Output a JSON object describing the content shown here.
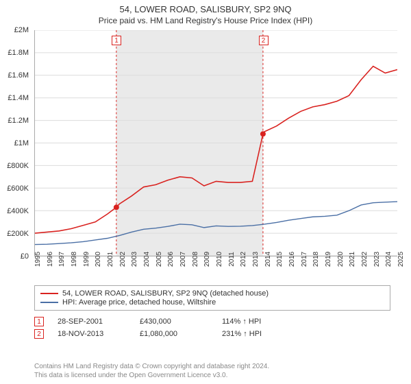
{
  "title": "54, LOWER ROAD, SALISBURY, SP2 9NQ",
  "subtitle": "Price paid vs. HM Land Registry's House Price Index (HPI)",
  "chart": {
    "type": "line",
    "background_color": "#ffffff",
    "shaded_band_color": "#eaeaea",
    "shaded_band_x": [
      2001.74,
      2013.88
    ],
    "grid_color": "#dcdcdc",
    "axis_color": "#aaaaaa",
    "tick_fontsize": 11,
    "xlim": [
      1995,
      2025
    ],
    "ylim": [
      0,
      2000000
    ],
    "y_ticks": [
      {
        "v": 0,
        "label": "£0"
      },
      {
        "v": 200000,
        "label": "£200K"
      },
      {
        "v": 400000,
        "label": "£400K"
      },
      {
        "v": 600000,
        "label": "£600K"
      },
      {
        "v": 800000,
        "label": "£800K"
      },
      {
        "v": 1000000,
        "label": "£1M"
      },
      {
        "v": 1200000,
        "label": "£1.2M"
      },
      {
        "v": 1400000,
        "label": "£1.4M"
      },
      {
        "v": 1600000,
        "label": "£1.6M"
      },
      {
        "v": 1800000,
        "label": "£1.8M"
      },
      {
        "v": 2000000,
        "label": "£2M"
      }
    ],
    "x_ticks": [
      1995,
      1996,
      1997,
      1998,
      1999,
      2000,
      2001,
      2002,
      2003,
      2004,
      2005,
      2006,
      2007,
      2008,
      2009,
      2010,
      2011,
      2012,
      2013,
      2014,
      2015,
      2016,
      2017,
      2018,
      2019,
      2020,
      2021,
      2022,
      2023,
      2024,
      2025
    ],
    "series": [
      {
        "id": "price_paid",
        "label": "54, LOWER ROAD, SALISBURY, SP2 9NQ (detached house)",
        "color": "#d9221f",
        "line_width": 1.6,
        "points": [
          [
            1995,
            200000
          ],
          [
            1996,
            210000
          ],
          [
            1997,
            220000
          ],
          [
            1998,
            240000
          ],
          [
            1999,
            270000
          ],
          [
            2000,
            300000
          ],
          [
            2001,
            370000
          ],
          [
            2001.74,
            430000
          ],
          [
            2002,
            460000
          ],
          [
            2003,
            530000
          ],
          [
            2004,
            610000
          ],
          [
            2005,
            630000
          ],
          [
            2006,
            670000
          ],
          [
            2007,
            700000
          ],
          [
            2008,
            690000
          ],
          [
            2009,
            620000
          ],
          [
            2010,
            660000
          ],
          [
            2011,
            650000
          ],
          [
            2012,
            650000
          ],
          [
            2013,
            660000
          ],
          [
            2013.88,
            1080000
          ],
          [
            2014,
            1100000
          ],
          [
            2015,
            1150000
          ],
          [
            2016,
            1220000
          ],
          [
            2017,
            1280000
          ],
          [
            2018,
            1320000
          ],
          [
            2019,
            1340000
          ],
          [
            2020,
            1370000
          ],
          [
            2021,
            1420000
          ],
          [
            2022,
            1560000
          ],
          [
            2023,
            1680000
          ],
          [
            2024,
            1620000
          ],
          [
            2025,
            1650000
          ]
        ]
      },
      {
        "id": "hpi",
        "label": "HPI: Average price, detached house, Wiltshire",
        "color": "#4a6fa5",
        "line_width": 1.4,
        "points": [
          [
            1995,
            100000
          ],
          [
            1996,
            102000
          ],
          [
            1997,
            108000
          ],
          [
            1998,
            115000
          ],
          [
            1999,
            125000
          ],
          [
            2000,
            140000
          ],
          [
            2001,
            155000
          ],
          [
            2002,
            180000
          ],
          [
            2003,
            210000
          ],
          [
            2004,
            235000
          ],
          [
            2005,
            245000
          ],
          [
            2006,
            260000
          ],
          [
            2007,
            280000
          ],
          [
            2008,
            275000
          ],
          [
            2009,
            250000
          ],
          [
            2010,
            265000
          ],
          [
            2011,
            260000
          ],
          [
            2012,
            262000
          ],
          [
            2013,
            268000
          ],
          [
            2014,
            280000
          ],
          [
            2015,
            295000
          ],
          [
            2016,
            315000
          ],
          [
            2017,
            330000
          ],
          [
            2018,
            345000
          ],
          [
            2019,
            350000
          ],
          [
            2020,
            360000
          ],
          [
            2021,
            400000
          ],
          [
            2022,
            450000
          ],
          [
            2023,
            470000
          ],
          [
            2024,
            475000
          ],
          [
            2025,
            480000
          ]
        ]
      }
    ],
    "sale_markers": [
      {
        "n": "1",
        "x": 2001.74,
        "y": 430000,
        "dash_color": "#d9221f"
      },
      {
        "n": "2",
        "x": 2013.88,
        "y": 1080000,
        "dash_color": "#d9221f"
      }
    ],
    "sale_dot_color": "#d9221f",
    "sale_dot_radius": 4
  },
  "legend": {
    "border_color": "#aaaaaa",
    "items": [
      {
        "color": "#d9221f",
        "label": "54, LOWER ROAD, SALISBURY, SP2 9NQ (detached house)"
      },
      {
        "color": "#4a6fa5",
        "label": "HPI: Average price, detached house, Wiltshire"
      }
    ]
  },
  "sales": [
    {
      "n": "1",
      "date": "28-SEP-2001",
      "price": "£430,000",
      "pct": "114% ↑ HPI"
    },
    {
      "n": "2",
      "date": "18-NOV-2013",
      "price": "£1,080,000",
      "pct": "231% ↑ HPI"
    }
  ],
  "footer_line1": "Contains HM Land Registry data © Crown copyright and database right 2024.",
  "footer_line2": "This data is licensed under the Open Government Licence v3.0."
}
